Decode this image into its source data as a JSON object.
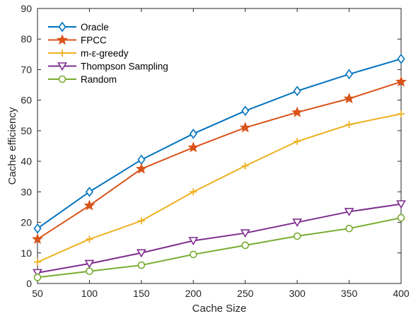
{
  "chart_data": {
    "type": "line",
    "xlabel": "Cache Size",
    "ylabel": "Cache efficiency",
    "x": [
      50,
      100,
      150,
      200,
      250,
      300,
      350,
      400
    ],
    "xlim": [
      50,
      400
    ],
    "ylim": [
      0,
      90
    ],
    "xticks": [
      "50",
      "100",
      "150",
      "200",
      "250",
      "300",
      "350",
      "400"
    ],
    "yticks": [
      "0",
      "10",
      "20",
      "30",
      "40",
      "50",
      "60",
      "70",
      "80",
      "90"
    ],
    "grid": false,
    "legend_position": "top-left",
    "series": [
      {
        "name": "Oracle",
        "color": "#0072BD",
        "marker": "diamond",
        "values": [
          18,
          30,
          40.5,
          49,
          56.5,
          63,
          68.5,
          73.5
        ]
      },
      {
        "name": "FPCC",
        "color": "#D95319",
        "marker": "star",
        "values": [
          14.5,
          25.5,
          37.5,
          44.5,
          51,
          56,
          60.5,
          66
        ]
      },
      {
        "name": "m-ε-greedy",
        "color": "#EDB120",
        "marker": "plus",
        "values": [
          7,
          14.5,
          20.5,
          30,
          38.5,
          46.5,
          52,
          55.5
        ]
      },
      {
        "name": "Thompson Sampling",
        "color": "#7E2F8E",
        "marker": "triangle-down",
        "values": [
          3.5,
          6.5,
          10,
          14,
          16.5,
          20,
          23.5,
          26
        ]
      },
      {
        "name": "Random",
        "color": "#77AC30",
        "marker": "circle",
        "values": [
          2,
          4,
          6,
          9.5,
          12.5,
          15.5,
          18,
          21.5
        ]
      }
    ]
  }
}
